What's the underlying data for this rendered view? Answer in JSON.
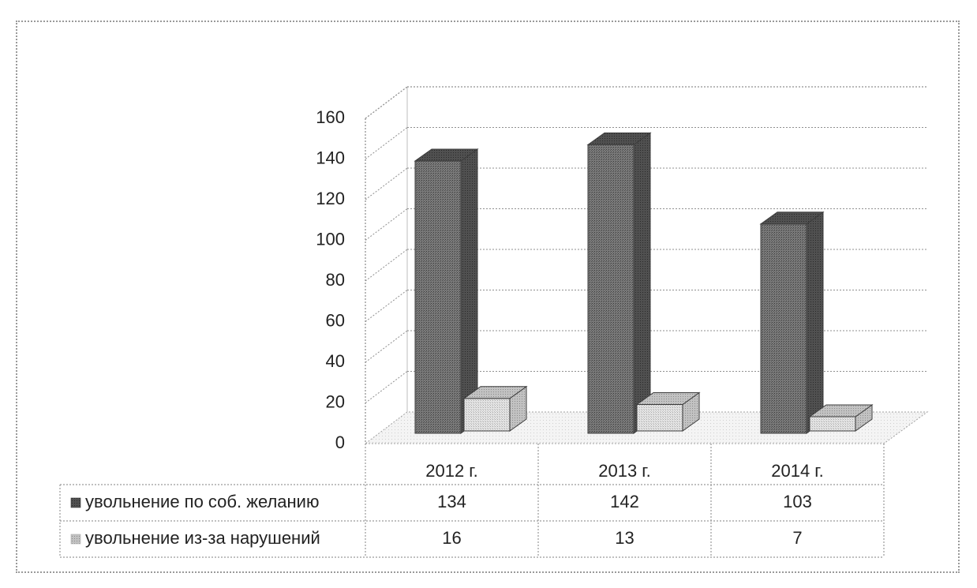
{
  "chart_data": {
    "type": "bar",
    "style": "3d-clustered-column-with-data-table",
    "title": "",
    "xlabel": "",
    "ylabel": "",
    "ylim": [
      0,
      160
    ],
    "yticks": [
      0,
      20,
      40,
      60,
      80,
      100,
      120,
      140,
      160
    ],
    "y_tick_labels": [
      "0",
      "20",
      "40",
      "60",
      "80",
      "100",
      "120",
      "140",
      "160"
    ],
    "grid": true,
    "legend": "data-table-left",
    "categories": [
      "2012 г.",
      "2013 г.",
      "2014 г."
    ],
    "series": [
      {
        "name": "увольнение по соб. желанию",
        "values": [
          134,
          142,
          103
        ],
        "value_labels": [
          "134",
          "142",
          "103"
        ],
        "color": "#6e6e6e"
      },
      {
        "name": "увольнение из-за нарушений",
        "values": [
          16,
          13,
          7
        ],
        "value_labels": [
          "16",
          "13",
          "7"
        ],
        "color": "#d4d4d4"
      }
    ]
  }
}
